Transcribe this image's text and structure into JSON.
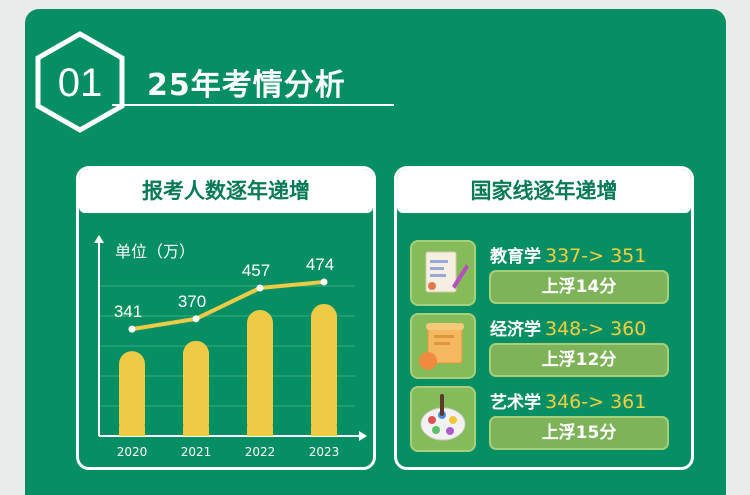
{
  "section": {
    "number": "01",
    "title": "25年考情分析"
  },
  "left_panel": {
    "title": "报考人数逐年递增",
    "unit_label": "单位（万）"
  },
  "right_panel": {
    "title": "国家线逐年递增",
    "items": [
      {
        "name": "教育学",
        "scores": "337-> 351",
        "badge": "上浮14分",
        "icon": "document-pen-icon"
      },
      {
        "name": "经济学",
        "scores": "348-> 360",
        "badge": "上浮12分",
        "icon": "scroll-icon"
      },
      {
        "name": "艺术学",
        "scores": "346-> 361",
        "badge": "上浮15分",
        "icon": "paint-palette-icon"
      }
    ]
  },
  "colors": {
    "background": "#068f62",
    "bar": "#eecb46",
    "line": "#eecb46",
    "accent_text": "#f6cf3d",
    "badge": "#7fb35a"
  },
  "chart_data": {
    "type": "bar",
    "categories": [
      "2020",
      "2021",
      "2022",
      "2023"
    ],
    "values": [
      341,
      370,
      457,
      474
    ],
    "line_overlay": true,
    "ylabel": "单位（万）",
    "ylim": [
      0,
      550
    ],
    "grid": true
  }
}
